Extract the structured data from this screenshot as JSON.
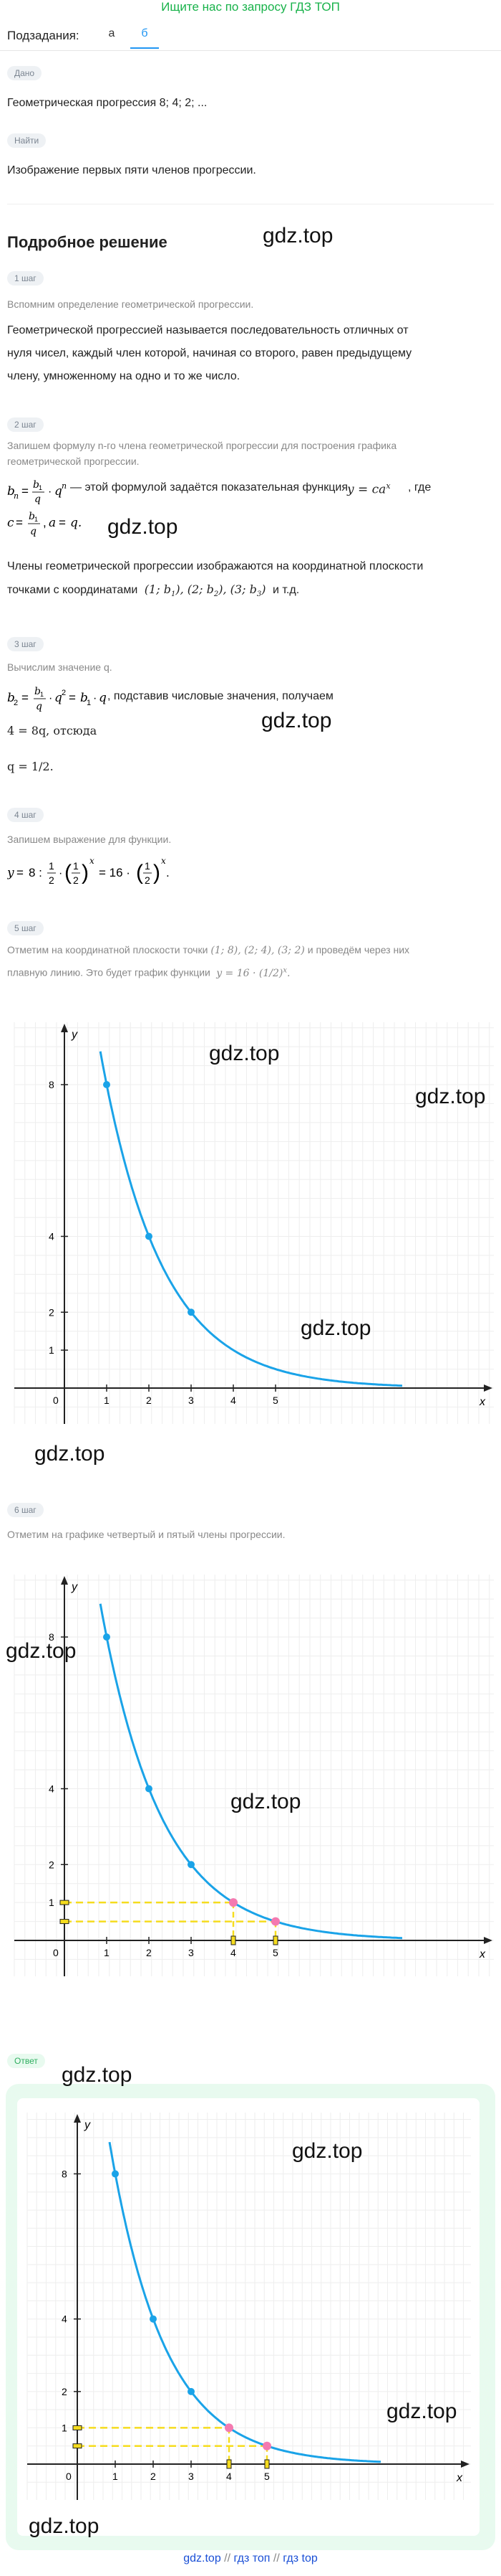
{
  "banner": "Ищите нас по запросу ГДЗ ТОП",
  "subtasks": {
    "label": "Подзадания:",
    "tabs": [
      "а",
      "б"
    ]
  },
  "given": {
    "pill": "Дано",
    "text": "Геометрическая прогрессия 8;  4;  2;  ..."
  },
  "find": {
    "pill": "Найти",
    "text": "Изображение первых пяти членов прогрессии."
  },
  "solution_title": "Подробное решение",
  "watermark": "gdz.top",
  "step1": {
    "pill": "1 шаг",
    "note": "Вспомним определение геометрической прогрессии.",
    "line1": "Геометрической прогрессией называется последовательность отличных от",
    "line2": "нуля чисел, каждый член которой, начиная со второго, равен предыдущему",
    "line3": "члену, умноженному на одно и то же число."
  },
  "step2": {
    "pill": "2 шаг",
    "note1": "Запишем формулу n-го члена геометрической прогрессии для построения графика",
    "note2": "геометрической прогрессии.",
    "formula_text": " — этой формулой задаётся показательная функция ",
    "formula_end": ", где",
    "line_c": "c = b₁/q, a = q.",
    "para1": "Члены геометрической прогрессии изображаются на координатной плоскости",
    "para2_a": "точками с координатами",
    "para2_b": "и т.д."
  },
  "step3": {
    "pill": "3 шаг",
    "note": "Вычислим значение q.",
    "line1_text": ", подставив числовые значения, получаем",
    "line2": "4 = 8q, отсюда",
    "line3": "q = 1/2."
  },
  "step4": {
    "pill": "4 шаг",
    "note": "Запишем выражение для функции."
  },
  "step5": {
    "pill": "5 шаг",
    "note1_a": "Отметим на координатной плоскости точки",
    "note1_b": "и проведём через них",
    "note2": "плавную линию. Это будет график функции"
  },
  "step6": {
    "pill": "6 шаг",
    "note": "Отметим на графике четвертый и пятый члены прогрессии."
  },
  "answer": {
    "pill": "Ответ"
  },
  "graph": {
    "xlabel": "x",
    "ylabel": "y",
    "xticks": [
      "0",
      "1",
      "2",
      "3",
      "4",
      "5"
    ],
    "yticks": [
      "1",
      "2",
      "4",
      "8"
    ],
    "points": [
      [
        1,
        8
      ],
      [
        2,
        4
      ],
      [
        3,
        2
      ]
    ],
    "extra_points": [
      [
        4,
        1
      ],
      [
        5,
        0.5
      ]
    ],
    "curve_color": "#1aa3e8",
    "point_color": "#1aa3e8",
    "extra_point_color": "#f47ab0",
    "guide_color": "#f5dc1e"
  },
  "footer": {
    "items": [
      "gdz.top",
      "гдз топ",
      "гдз top"
    ],
    "sep": "//"
  }
}
